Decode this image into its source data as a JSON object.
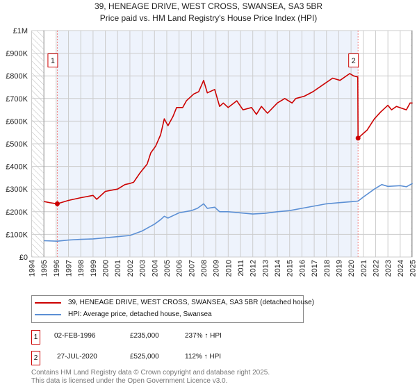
{
  "title": "39, HENEAGE DRIVE, WEST CROSS, SWANSEA, SA3 5BR",
  "subtitle": "Price paid vs. HM Land Registry's House Price Index (HPI)",
  "colors": {
    "property": "#cc0000",
    "hpi": "#5b8fd4",
    "shade": "#eef3fc",
    "grid": "#cccccc"
  },
  "chart_data": {
    "type": "line",
    "title": "39, HENEAGE DRIVE, WEST CROSS, SWANSEA, SA3 5BR",
    "subtitle": "Price paid vs. HM Land Registry's House Price Index (HPI)",
    "xlim": [
      1994,
      2025
    ],
    "ylim": [
      0,
      1000000
    ],
    "x_ticks": [
      "1994",
      "1995",
      "1996",
      "1997",
      "1998",
      "1999",
      "2000",
      "2001",
      "2002",
      "2003",
      "2004",
      "2005",
      "2006",
      "2007",
      "2008",
      "2009",
      "2010",
      "2011",
      "2012",
      "2013",
      "2014",
      "2015",
      "2016",
      "2017",
      "2018",
      "2019",
      "2020",
      "2021",
      "2022",
      "2023",
      "2024",
      "2025"
    ],
    "y_ticks": [
      {
        "v": 0,
        "label": "£0"
      },
      {
        "v": 100000,
        "label": "£100K"
      },
      {
        "v": 200000,
        "label": "£200K"
      },
      {
        "v": 300000,
        "label": "£300K"
      },
      {
        "v": 400000,
        "label": "£400K"
      },
      {
        "v": 500000,
        "label": "£500K"
      },
      {
        "v": 600000,
        "label": "£600K"
      },
      {
        "v": 700000,
        "label": "£700K"
      },
      {
        "v": 800000,
        "label": "£800K"
      },
      {
        "v": 900000,
        "label": "£900K"
      },
      {
        "v": 1000000,
        "label": "£1M"
      }
    ],
    "grid": true,
    "legend_position": "below",
    "series": [
      {
        "name": "39, HENEAGE DRIVE, WEST CROSS, SWANSEA, SA3 5BR (detached house)",
        "x": [
          1995,
          1995.5,
          1996.09,
          1997,
          1998,
          1999,
          1999.3,
          2000,
          2001,
          2001.6,
          2002,
          2002.3,
          2002.8,
          2003.4,
          2003.7,
          2004.1,
          2004.5,
          2004.8,
          2005.1,
          2005.5,
          2005.8,
          2006.3,
          2006.6,
          2007.2,
          2007.6,
          2008.0,
          2008.3,
          2008.9,
          2009.3,
          2009.6,
          2010.0,
          2010.7,
          2011.2,
          2011.9,
          2012.3,
          2012.7,
          2013.2,
          2014.0,
          2014.6,
          2015.2,
          2015.5,
          2016.2,
          2016.9,
          2017.7,
          2018.5,
          2019.1,
          2019.9,
          2020.2,
          2020.55,
          2020.57,
          2021.3,
          2021.9,
          2022.4,
          2023.0,
          2023.3,
          2023.7,
          2024.5,
          2024.8,
          2025.0
        ],
        "y": [
          245000,
          240000,
          235000,
          250000,
          262000,
          272000,
          255000,
          290000,
          300000,
          320000,
          325000,
          330000,
          370000,
          410000,
          460000,
          490000,
          540000,
          610000,
          580000,
          620000,
          660000,
          660000,
          690000,
          720000,
          730000,
          780000,
          725000,
          740000,
          665000,
          680000,
          660000,
          690000,
          650000,
          660000,
          630000,
          665000,
          635000,
          680000,
          700000,
          680000,
          700000,
          710000,
          730000,
          760000,
          790000,
          780000,
          810000,
          800000,
          795000,
          525000,
          560000,
          610000,
          640000,
          670000,
          650000,
          665000,
          650000,
          680000,
          680000
        ]
      },
      {
        "name": "HPI: Average price, detached house, Swansea",
        "x": [
          1995,
          1996.09,
          1997,
          1998,
          1999,
          2000,
          2001,
          2002,
          2002.5,
          2003,
          2003.5,
          2004,
          2004.5,
          2004.8,
          2005.1,
          2005.6,
          2006,
          2007,
          2007.5,
          2008,
          2008.3,
          2008.9,
          2009.3,
          2010,
          2011,
          2012,
          2013,
          2014,
          2015,
          2016,
          2017,
          2018,
          2019,
          2020.57,
          2021,
          2021.9,
          2022.5,
          2023,
          2024,
          2024.5,
          2025
        ],
        "y": [
          72000,
          70000,
          75000,
          78000,
          80000,
          85000,
          90000,
          95000,
          105000,
          115000,
          130000,
          145000,
          165000,
          180000,
          172000,
          185000,
          195000,
          205000,
          215000,
          235000,
          215000,
          220000,
          200000,
          200000,
          195000,
          190000,
          193000,
          200000,
          205000,
          215000,
          225000,
          235000,
          240000,
          247000,
          265000,
          300000,
          320000,
          312000,
          315000,
          310000,
          325000
        ]
      }
    ],
    "annotations": [
      {
        "label": "1",
        "x": 1996.09,
        "y": 235000
      },
      {
        "label": "2",
        "x": 2020.57,
        "y": 525000
      }
    ]
  },
  "legend": {
    "property": "39, HENEAGE DRIVE, WEST CROSS, SWANSEA, SA3 5BR (detached house)",
    "hpi": "HPI: Average price, detached house, Swansea"
  },
  "transactions": [
    {
      "num": "1",
      "date": "02-FEB-1996",
      "price": "£235,000",
      "hpi": "237% ↑ HPI"
    },
    {
      "num": "2",
      "date": "27-JUL-2020",
      "price": "£525,000",
      "hpi": "112% ↑ HPI"
    }
  ],
  "footer": {
    "line1": "Contains HM Land Registry data © Crown copyright and database right 2025.",
    "line2": "This data is licensed under the Open Government Licence v3.0."
  }
}
